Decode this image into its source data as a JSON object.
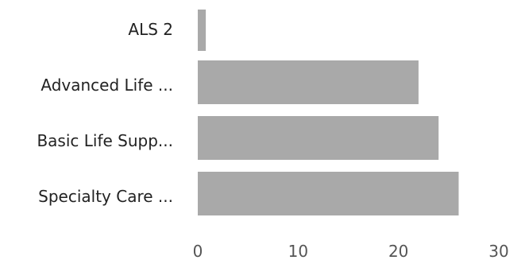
{
  "chart_data": {
    "type": "bar",
    "orientation": "horizontal",
    "categories": [
      "ALS 2",
      "Advanced Life ...",
      "Basic Life Supp...",
      "Specialty Care ..."
    ],
    "values": [
      0.8,
      22,
      24,
      26
    ],
    "xlim": [
      0,
      30
    ],
    "xticks": [
      0,
      10,
      20,
      30
    ],
    "xtick_labels": [
      "0",
      "10",
      "20",
      "30"
    ],
    "title": "",
    "xlabel": "",
    "ylabel": "",
    "grid": false,
    "bar_color": "#a9a9a9"
  }
}
